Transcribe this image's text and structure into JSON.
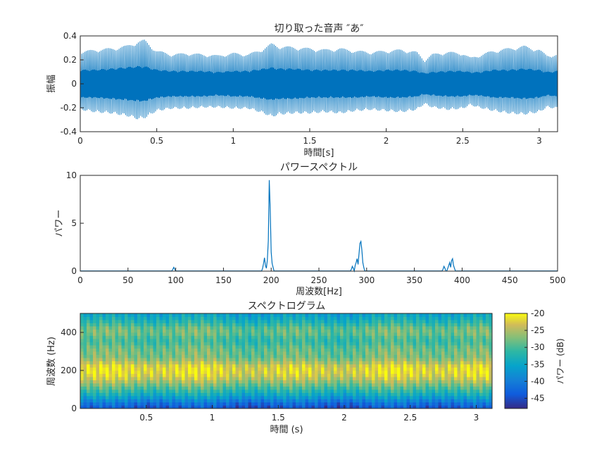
{
  "chart_data": [
    {
      "type": "line",
      "title": "切り取った音声 ″あ″",
      "xlabel": "時間[s]",
      "ylabel": "振幅",
      "xlim": [
        0,
        3.12
      ],
      "ylim": [
        -0.4,
        0.4
      ],
      "xticks": [
        0,
        0.5,
        1,
        1.5,
        2,
        2.5,
        3
      ],
      "xtick_labels": [
        "0",
        "0.5",
        "1",
        "1.5",
        "2",
        "2.5",
        "3"
      ],
      "yticks": [
        -0.4,
        -0.2,
        0,
        0.2,
        0.4
      ],
      "ytick_labels": [
        "-0.4",
        "-0.2",
        "0",
        "0.2",
        "0.4"
      ],
      "color": "#0072BD",
      "envelope": {
        "t": [
          0,
          0.1,
          0.2,
          0.3,
          0.38,
          0.42,
          0.5,
          0.6,
          0.7,
          0.8,
          0.9,
          1.0,
          1.1,
          1.2,
          1.25,
          1.3,
          1.4,
          1.5,
          1.6,
          1.7,
          1.8,
          1.9,
          2.0,
          2.1,
          2.2,
          2.25,
          2.3,
          2.4,
          2.5,
          2.55,
          2.6,
          2.7,
          2.8,
          2.9,
          3.0,
          3.05,
          3.12
        ],
        "upper": [
          0.27,
          0.29,
          0.3,
          0.32,
          0.36,
          0.37,
          0.28,
          0.25,
          0.26,
          0.25,
          0.24,
          0.26,
          0.25,
          0.3,
          0.34,
          0.32,
          0.31,
          0.3,
          0.29,
          0.3,
          0.28,
          0.27,
          0.28,
          0.29,
          0.27,
          0.2,
          0.25,
          0.27,
          0.26,
          0.22,
          0.24,
          0.28,
          0.3,
          0.32,
          0.29,
          0.24,
          0.25
        ],
        "lower": [
          -0.22,
          -0.24,
          -0.25,
          -0.27,
          -0.3,
          -0.29,
          -0.23,
          -0.21,
          -0.21,
          -0.2,
          -0.2,
          -0.21,
          -0.21,
          -0.25,
          -0.28,
          -0.26,
          -0.25,
          -0.25,
          -0.24,
          -0.25,
          -0.23,
          -0.22,
          -0.23,
          -0.24,
          -0.22,
          -0.17,
          -0.2,
          -0.22,
          -0.21,
          -0.18,
          -0.2,
          -0.23,
          -0.25,
          -0.26,
          -0.24,
          -0.2,
          -0.21
        ],
        "core": [
          0.12,
          0.12,
          0.13,
          0.14,
          0.15,
          0.15,
          0.12,
          0.11,
          0.11,
          0.11,
          0.1,
          0.11,
          0.11,
          0.13,
          0.14,
          0.13,
          0.13,
          0.12,
          0.12,
          0.12,
          0.12,
          0.11,
          0.12,
          0.12,
          0.11,
          0.09,
          0.1,
          0.11,
          0.11,
          0.1,
          0.1,
          0.12,
          0.12,
          0.13,
          0.12,
          0.1,
          0.11
        ]
      }
    },
    {
      "type": "line",
      "title": "パワースペクトル",
      "xlabel": "周波数[Hz]",
      "ylabel": "パワー",
      "xlim": [
        0,
        500
      ],
      "ylim": [
        0,
        10
      ],
      "xticks": [
        0,
        50,
        100,
        150,
        200,
        250,
        300,
        350,
        400,
        450,
        500
      ],
      "xtick_labels": [
        "0",
        "50",
        "100",
        "150",
        "200",
        "250",
        "300",
        "350",
        "400",
        "450",
        "500"
      ],
      "yticks": [
        0,
        5,
        10
      ],
      "ytick_labels": [
        "0",
        "5",
        "10"
      ],
      "color": "#0072BD",
      "peaks": [
        {
          "x": 97,
          "y": 0.2
        },
        {
          "x": 98,
          "y": 0.4
        },
        {
          "x": 99,
          "y": 0.2
        },
        {
          "x": 191,
          "y": 0.3
        },
        {
          "x": 192,
          "y": 0.8
        },
        {
          "x": 193,
          "y": 1.4
        },
        {
          "x": 194,
          "y": 0.6
        },
        {
          "x": 195,
          "y": 0.3
        },
        {
          "x": 196,
          "y": 1.2
        },
        {
          "x": 197,
          "y": 3.2
        },
        {
          "x": 198,
          "y": 9.5
        },
        {
          "x": 199,
          "y": 6.4
        },
        {
          "x": 200,
          "y": 2.0
        },
        {
          "x": 201,
          "y": 0.8
        },
        {
          "x": 202,
          "y": 0.4
        },
        {
          "x": 284,
          "y": 0.2
        },
        {
          "x": 285,
          "y": 0.5
        },
        {
          "x": 286,
          "y": 0.3
        },
        {
          "x": 288,
          "y": 0.6
        },
        {
          "x": 289,
          "y": 0.9
        },
        {
          "x": 290,
          "y": 1.3
        },
        {
          "x": 291,
          "y": 0.7
        },
        {
          "x": 292,
          "y": 1.8
        },
        {
          "x": 293,
          "y": 2.9
        },
        {
          "x": 294,
          "y": 3.1
        },
        {
          "x": 295,
          "y": 2.2
        },
        {
          "x": 296,
          "y": 0.9
        },
        {
          "x": 297,
          "y": 0.4
        },
        {
          "x": 380,
          "y": 0.2
        },
        {
          "x": 381,
          "y": 0.5
        },
        {
          "x": 382,
          "y": 0.3
        },
        {
          "x": 385,
          "y": 0.3
        },
        {
          "x": 386,
          "y": 0.6
        },
        {
          "x": 387,
          "y": 0.9
        },
        {
          "x": 388,
          "y": 0.4
        },
        {
          "x": 389,
          "y": 1.1
        },
        {
          "x": 390,
          "y": 1.3
        },
        {
          "x": 391,
          "y": 0.6
        },
        {
          "x": 392,
          "y": 0.3
        }
      ]
    },
    {
      "type": "heatmap",
      "title": "スペクトログラム",
      "xlabel": "時間 (s)",
      "ylabel": "周波数 (Hz)",
      "xlim": [
        0,
        3.12
      ],
      "ylim": [
        0,
        500
      ],
      "xticks": [
        0.5,
        1,
        1.5,
        2,
        2.5,
        3
      ],
      "xtick_labels": [
        "0.5",
        "1",
        "1.5",
        "2",
        "2.5",
        "3"
      ],
      "yticks": [
        0,
        200,
        400
      ],
      "ytick_labels": [
        "0",
        "200",
        "400"
      ],
      "colormap": "parula",
      "colorbar": {
        "label": "パワー (dB)",
        "range": [
          -48,
          -20
        ],
        "ticks": [
          -20,
          -25,
          -30,
          -35,
          -40,
          -45
        ],
        "tick_labels": [
          "-20",
          "-25",
          "-30",
          "-35",
          "-40",
          "-45"
        ]
      },
      "power_profile_db": {
        "freq_hz": [
          0,
          25,
          50,
          75,
          100,
          125,
          150,
          175,
          200,
          225,
          250,
          275,
          300,
          325,
          350,
          375,
          400,
          425,
          450,
          475,
          500
        ],
        "power": [
          -45,
          -42,
          -38,
          -34,
          -31,
          -28,
          -25,
          -23,
          -22,
          -23,
          -26,
          -28,
          -28,
          -29,
          -31,
          -30,
          -28,
          -29,
          -32,
          -34,
          -36
        ]
      }
    }
  ]
}
